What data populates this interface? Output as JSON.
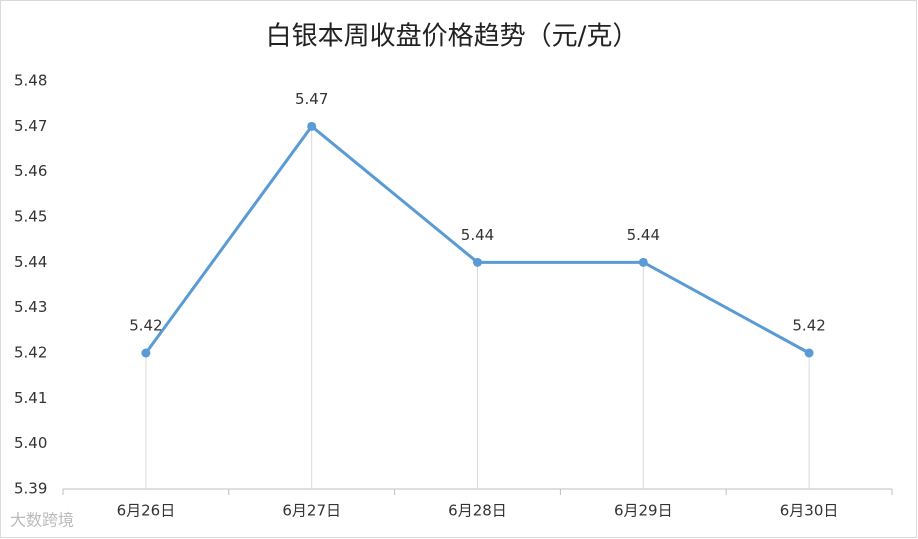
{
  "chart_data": {
    "type": "line",
    "title": "白银本周收盘价格趋势（元/克）",
    "categories": [
      "6月26日",
      "6月27日",
      "6月28日",
      "6月29日",
      "6月30日"
    ],
    "values": [
      5.42,
      5.47,
      5.44,
      5.44,
      5.42
    ],
    "color": "#5b9bd5",
    "ylim": [
      5.39,
      5.48
    ],
    "yticks": [
      5.39,
      {
        "value": 5.4,
        "label": "5.40"
      },
      5.41,
      5.42,
      5.43,
      5.44,
      5.45,
      5.46,
      5.47,
      5.48
    ],
    "grid": false,
    "drop_lines": true,
    "watermark": "大数跨境"
  }
}
